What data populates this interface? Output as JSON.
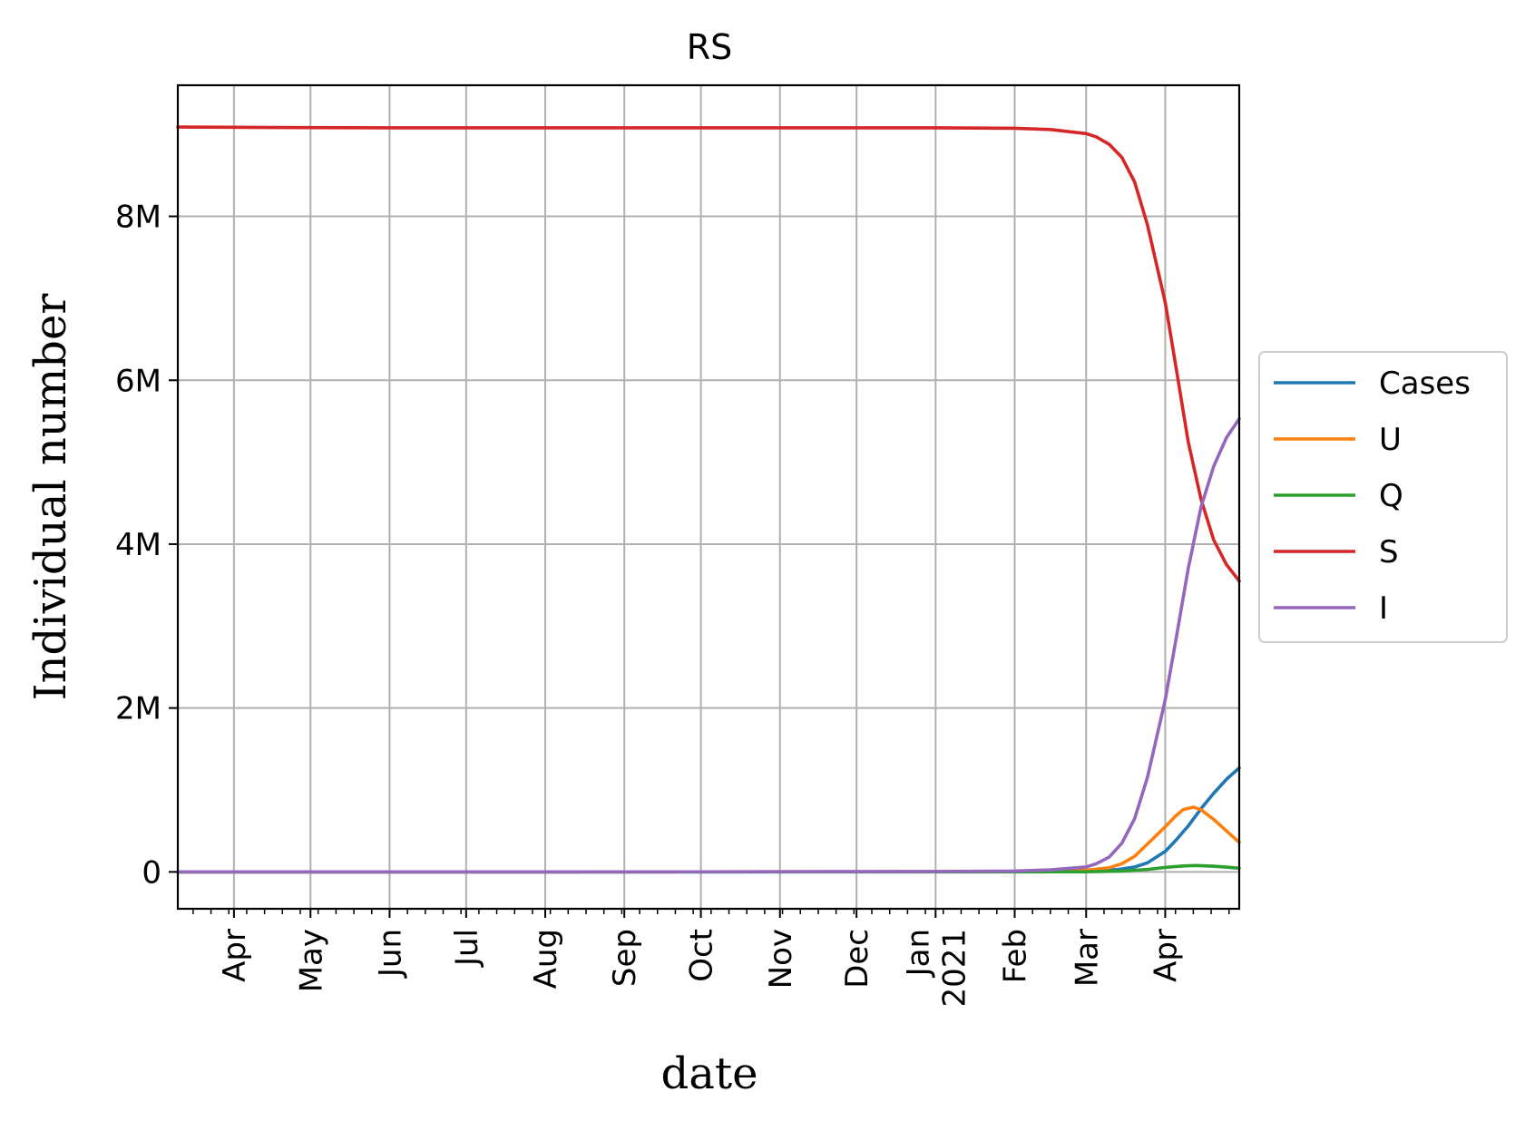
{
  "chart_data": {
    "type": "line",
    "title": "RS",
    "xlabel": "date",
    "ylabel": "Individual number",
    "x_range": [
      "2020-03-10",
      "2021-04-30"
    ],
    "ylim": [
      -450000,
      9600000
    ],
    "grid": true,
    "legend_position": "center-right-outside",
    "y_ticks": [
      {
        "value": 0,
        "label": "0"
      },
      {
        "value": 2000000,
        "label": "2M"
      },
      {
        "value": 4000000,
        "label": "4M"
      },
      {
        "value": 6000000,
        "label": "6M"
      },
      {
        "value": 8000000,
        "label": "8M"
      }
    ],
    "x_ticks": [
      {
        "date": "2020-04-01",
        "label": "Apr"
      },
      {
        "date": "2020-05-01",
        "label": "May"
      },
      {
        "date": "2020-06-01",
        "label": "Jun"
      },
      {
        "date": "2020-07-01",
        "label": "Jul"
      },
      {
        "date": "2020-08-01",
        "label": "Aug"
      },
      {
        "date": "2020-09-01",
        "label": "Sep"
      },
      {
        "date": "2020-10-01",
        "label": "Oct"
      },
      {
        "date": "2020-11-01",
        "label": "Nov"
      },
      {
        "date": "2020-12-01",
        "label": "Dec"
      },
      {
        "date": "2021-01-01",
        "label": "Jan\n2021"
      },
      {
        "date": "2021-02-01",
        "label": "Feb"
      },
      {
        "date": "2021-03-01",
        "label": "Mar"
      },
      {
        "date": "2021-04-01",
        "label": "Apr"
      }
    ],
    "series": [
      {
        "name": "Cases",
        "color": "#1f77b4",
        "points": [
          [
            "2020-03-10",
            0
          ],
          [
            "2020-10-01",
            500
          ],
          [
            "2021-02-01",
            2000
          ],
          [
            "2021-02-15",
            4000
          ],
          [
            "2021-03-01",
            10000
          ],
          [
            "2021-03-10",
            20000
          ],
          [
            "2021-03-15",
            35000
          ],
          [
            "2021-03-20",
            60000
          ],
          [
            "2021-03-25",
            110000
          ],
          [
            "2021-04-01",
            250000
          ],
          [
            "2021-04-05",
            380000
          ],
          [
            "2021-04-10",
            560000
          ],
          [
            "2021-04-15",
            770000
          ],
          [
            "2021-04-20",
            960000
          ],
          [
            "2021-04-25",
            1130000
          ],
          [
            "2021-04-30",
            1270000
          ]
        ]
      },
      {
        "name": "U",
        "color": "#ff7f0e",
        "points": [
          [
            "2020-03-10",
            0
          ],
          [
            "2020-10-01",
            1000
          ],
          [
            "2021-02-01",
            3000
          ],
          [
            "2021-02-15",
            8000
          ],
          [
            "2021-03-01",
            20000
          ],
          [
            "2021-03-10",
            50000
          ],
          [
            "2021-03-15",
            100000
          ],
          [
            "2021-03-20",
            190000
          ],
          [
            "2021-03-25",
            340000
          ],
          [
            "2021-04-01",
            550000
          ],
          [
            "2021-04-05",
            680000
          ],
          [
            "2021-04-08",
            760000
          ],
          [
            "2021-04-12",
            790000
          ],
          [
            "2021-04-15",
            760000
          ],
          [
            "2021-04-20",
            640000
          ],
          [
            "2021-04-25",
            500000
          ],
          [
            "2021-04-30",
            360000
          ]
        ]
      },
      {
        "name": "Q",
        "color": "#2ca02c",
        "points": [
          [
            "2020-03-10",
            0
          ],
          [
            "2021-02-01",
            500
          ],
          [
            "2021-03-01",
            2000
          ],
          [
            "2021-03-15",
            10000
          ],
          [
            "2021-03-25",
            30000
          ],
          [
            "2021-04-01",
            55000
          ],
          [
            "2021-04-08",
            72000
          ],
          [
            "2021-04-13",
            78000
          ],
          [
            "2021-04-20",
            70000
          ],
          [
            "2021-04-25",
            58000
          ],
          [
            "2021-04-30",
            45000
          ]
        ]
      },
      {
        "name": "S",
        "color": "#d62728",
        "points": [
          [
            "2020-03-10",
            9090000
          ],
          [
            "2020-04-15",
            9085000
          ],
          [
            "2020-06-01",
            9080000
          ],
          [
            "2021-01-01",
            9080000
          ],
          [
            "2021-02-01",
            9075000
          ],
          [
            "2021-02-15",
            9060000
          ],
          [
            "2021-03-01",
            9010000
          ],
          [
            "2021-03-05",
            8970000
          ],
          [
            "2021-03-10",
            8880000
          ],
          [
            "2021-03-15",
            8720000
          ],
          [
            "2021-03-20",
            8420000
          ],
          [
            "2021-03-25",
            7900000
          ],
          [
            "2021-04-01",
            6950000
          ],
          [
            "2021-04-05",
            6200000
          ],
          [
            "2021-04-10",
            5250000
          ],
          [
            "2021-04-15",
            4550000
          ],
          [
            "2021-04-20",
            4050000
          ],
          [
            "2021-04-25",
            3750000
          ],
          [
            "2021-04-30",
            3550000
          ]
        ]
      },
      {
        "name": "I",
        "color": "#9467bd",
        "points": [
          [
            "2020-03-10",
            0
          ],
          [
            "2020-10-01",
            1000
          ],
          [
            "2021-01-01",
            5000
          ],
          [
            "2021-02-01",
            10000
          ],
          [
            "2021-02-15",
            25000
          ],
          [
            "2021-03-01",
            60000
          ],
          [
            "2021-03-05",
            100000
          ],
          [
            "2021-03-10",
            180000
          ],
          [
            "2021-03-15",
            350000
          ],
          [
            "2021-03-20",
            650000
          ],
          [
            "2021-03-25",
            1150000
          ],
          [
            "2021-04-01",
            2100000
          ],
          [
            "2021-04-05",
            2800000
          ],
          [
            "2021-04-10",
            3700000
          ],
          [
            "2021-04-15",
            4450000
          ],
          [
            "2021-04-20",
            4950000
          ],
          [
            "2021-04-25",
            5300000
          ],
          [
            "2021-04-30",
            5530000
          ]
        ]
      }
    ]
  }
}
